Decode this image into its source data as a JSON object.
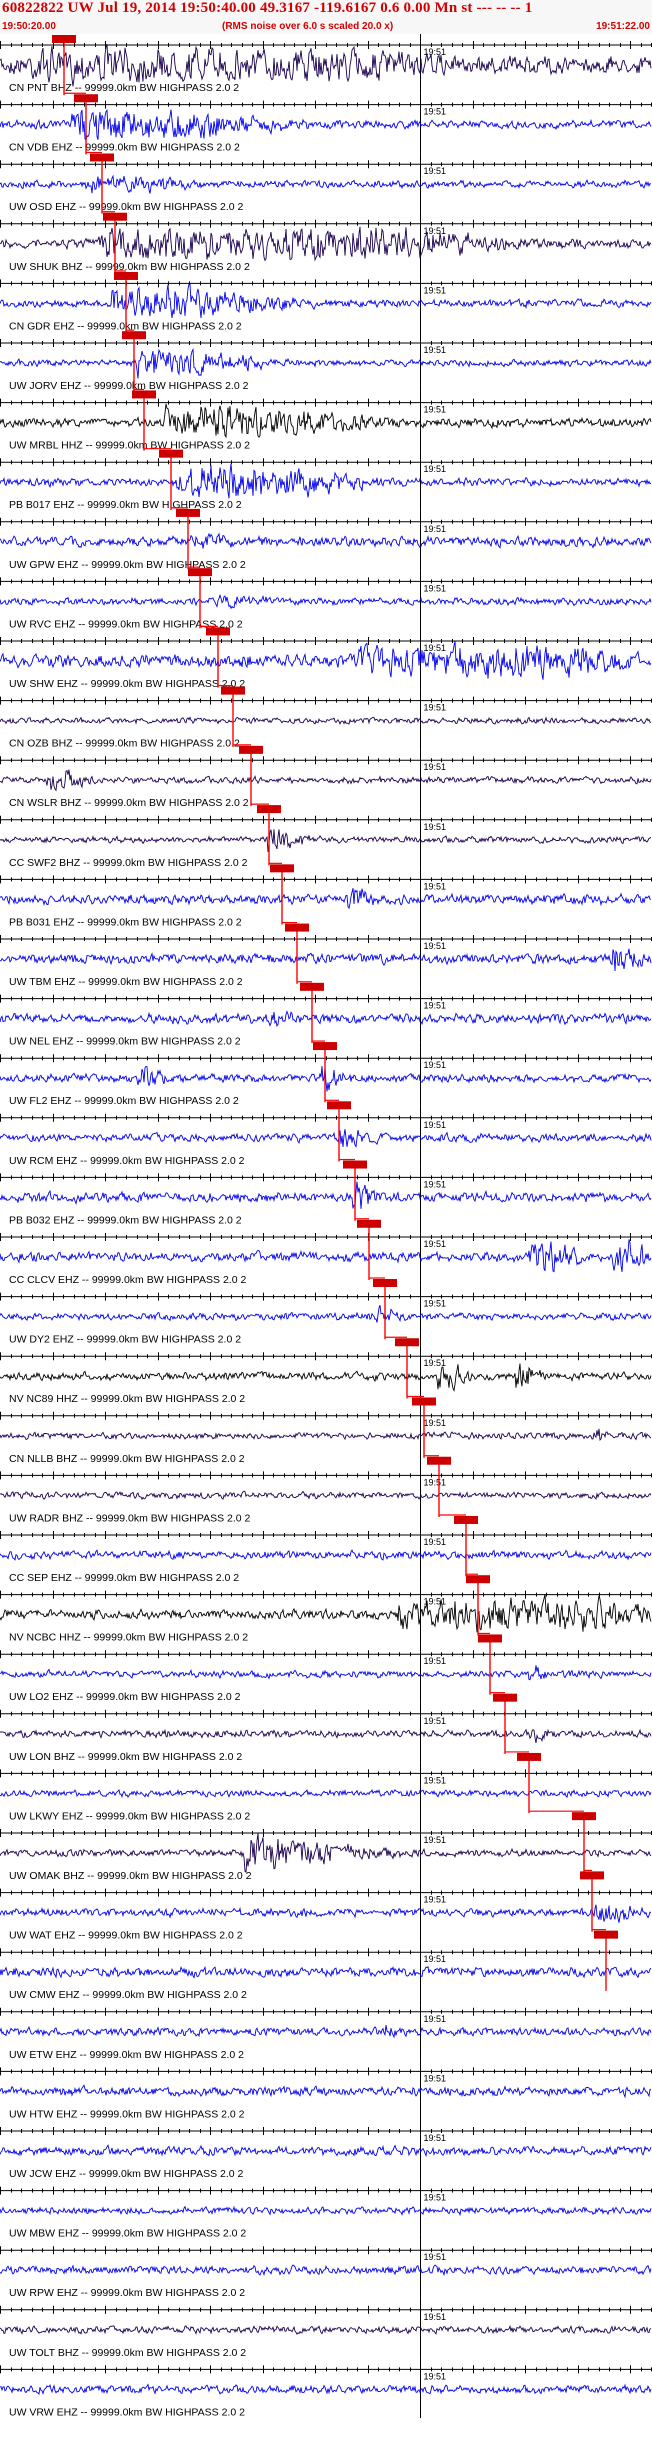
{
  "header": {
    "title": "60822822 UW Jul 19, 2014 19:50:40.00   49.3167 -119.6167  0.6 0.00 Mn st --- --  --   1",
    "start_time": "19:50:20.00",
    "note": "(RMS noise over 6.0 s scaled 20.0 x)",
    "end_time": "19:51:22.00"
  },
  "chart_data": {
    "type": "seismogram",
    "x_start": "19:50:20.00",
    "x_end": "19:51:22.00",
    "minute_tick_label": "19:51",
    "pick_line_color": "#ff0000",
    "pick_box_color": "#cc0000",
    "traces": [
      {
        "label": "CN PNT BHZ -- 99999.0km BW  HIGHPASS  2.0  2",
        "color": "#1a0050",
        "amp": 0.55,
        "events": [
          [
            0.05,
            0.48,
            3.2
          ]
        ]
      },
      {
        "label": "CN VDB EHZ -- 99999.0km BW  HIGHPASS  2.0  2",
        "color": "#0000ee",
        "amp": 0.25,
        "events": [
          [
            0.12,
            0.3,
            1.2
          ]
        ]
      },
      {
        "label": "UW OSD EHZ -- 99999.0km BW  HIGHPASS  2.0  2",
        "color": "#0000ee",
        "amp": 0.22,
        "events": [
          [
            0.14,
            0.2,
            0.6
          ]
        ]
      },
      {
        "label": "UW SHUK BHZ -- 99999.0km BW  HIGHPASS  2.0  2",
        "color": "#1a0050",
        "amp": 0.3,
        "events": [
          [
            0.16,
            0.4,
            2.0
          ],
          [
            0.5,
            0.25,
            1.4
          ]
        ]
      },
      {
        "label": "CN GDR EHZ -- 99999.0km BW  HIGHPASS  2.0  2",
        "color": "#0000ee",
        "amp": 0.25,
        "events": [
          [
            0.18,
            0.25,
            1.3
          ]
        ]
      },
      {
        "label": "UW JORV EHZ -- 99999.0km BW  HIGHPASS  2.0  2",
        "color": "#0000ee",
        "amp": 0.2,
        "events": [
          [
            0.22,
            0.2,
            0.9
          ]
        ]
      },
      {
        "label": "UW MRBL HHZ -- 99999.0km BW  HIGHPASS  2.0  2",
        "color": "#000000",
        "amp": 0.28,
        "events": [
          [
            0.26,
            0.3,
            1.3
          ]
        ]
      },
      {
        "label": "PB B017 EHZ -- 99999.0km BW  HIGHPASS  2.0  2",
        "color": "#0000ee",
        "amp": 0.25,
        "events": [
          [
            0.28,
            0.25,
            1.5
          ]
        ]
      },
      {
        "label": "UW GPW EHZ -- 99999.0km BW  HIGHPASS  2.0  2",
        "color": "#0000ee",
        "amp": 0.3,
        "events": [
          [
            0.3,
            0.15,
            0.6
          ]
        ]
      },
      {
        "label": "UW RVC EHZ -- 99999.0km BW  HIGHPASS  2.0  2",
        "color": "#0000ee",
        "amp": 0.22,
        "events": [
          [
            0.34,
            0.1,
            0.6
          ]
        ]
      },
      {
        "label": "UW SHW EHZ -- 99999.0km BW  HIGHPASS  2.0  2",
        "color": "#0000ee",
        "amp": 0.4,
        "events": [
          [
            0.56,
            0.3,
            3.5
          ]
        ]
      },
      {
        "label": "CN OZB BHZ -- 99999.0km BW  HIGHPASS  2.0  2",
        "color": "#1a0050",
        "amp": 0.18,
        "events": []
      },
      {
        "label": "CN WSLR BHZ -- 99999.0km BW  HIGHPASS  2.0  2",
        "color": "#1a0050",
        "amp": 0.2,
        "events": [
          [
            0.08,
            0.04,
            1.2
          ]
        ]
      },
      {
        "label": "CC SWF2 BHZ -- 99999.0km BW  HIGHPASS  2.0  2",
        "color": "#1a0050",
        "amp": 0.2,
        "events": [
          [
            0.42,
            0.05,
            0.9
          ]
        ]
      },
      {
        "label": "PB B031 EHZ -- 99999.0km BW  HIGHPASS  2.0  2",
        "color": "#0000ee",
        "amp": 0.3,
        "events": [
          [
            0.54,
            0.03,
            1.1
          ]
        ]
      },
      {
        "label": "UW TBM EHZ -- 99999.0km BW  HIGHPASS  2.0  2",
        "color": "#0000ee",
        "amp": 0.3,
        "events": [
          [
            0.95,
            0.05,
            1.0
          ]
        ]
      },
      {
        "label": "UW NEL EHZ -- 99999.0km BW  HIGHPASS  2.0  2",
        "color": "#0000ee",
        "amp": 0.3,
        "events": [
          [
            0.42,
            0.12,
            0.5
          ]
        ]
      },
      {
        "label": "UW FL2 EHZ -- 99999.0km BW  HIGHPASS  2.0  2",
        "color": "#0000ee",
        "amp": 0.25,
        "events": [
          [
            0.22,
            0.03,
            1.2
          ],
          [
            0.5,
            0.03,
            1.0
          ]
        ]
      },
      {
        "label": "UW RCM EHZ -- 99999.0km BW  HIGHPASS  2.0  2",
        "color": "#0000ee",
        "amp": 0.25,
        "events": [
          [
            0.53,
            0.06,
            0.8
          ]
        ]
      },
      {
        "label": "PB B032 EHZ -- 99999.0km BW  HIGHPASS  2.0  2",
        "color": "#0000ee",
        "amp": 0.3,
        "events": [
          [
            0.55,
            0.04,
            1.0
          ]
        ]
      },
      {
        "label": "CC CLCV EHZ -- 99999.0km BW  HIGHPASS  2.0  2",
        "color": "#0000ee",
        "amp": 0.3,
        "events": [
          [
            0.82,
            0.06,
            1.6
          ],
          [
            0.95,
            0.04,
            1.6
          ]
        ]
      },
      {
        "label": "UW DY2 EHZ -- 99999.0km BW  HIGHPASS  2.0  2",
        "color": "#0000ee",
        "amp": 0.22,
        "events": [
          [
            0.58,
            0.04,
            0.7
          ]
        ]
      },
      {
        "label": "NV NC89 HHZ -- 99999.0km BW  HIGHPASS  2.0  2",
        "color": "#000000",
        "amp": 0.25,
        "events": [
          [
            0.68,
            0.03,
            1.6
          ],
          [
            0.8,
            0.02,
            1.4
          ]
        ]
      },
      {
        "label": "CN NLLB BHZ -- 99999.0km BW  HIGHPASS  2.0  2",
        "color": "#1a0050",
        "amp": 0.2,
        "events": [
          [
            0.92,
            0.02,
            0.5
          ]
        ]
      },
      {
        "label": "UW RADR BHZ -- 99999.0km BW  HIGHPASS  2.0  2",
        "color": "#1a0050",
        "amp": 0.2,
        "events": []
      },
      {
        "label": "CC SEP EHZ -- 99999.0km BW  HIGHPASS  2.0  2",
        "color": "#0000ee",
        "amp": 0.25,
        "events": []
      },
      {
        "label": "NV NCBC HHZ -- 99999.0km BW  HIGHPASS  2.0  2",
        "color": "#000000",
        "amp": 0.3,
        "events": [
          [
            0.62,
            0.3,
            3.0
          ]
        ]
      },
      {
        "label": "UW LO2 EHZ -- 99999.0km BW  HIGHPASS  2.0  2",
        "color": "#0000ee",
        "amp": 0.22,
        "events": [
          [
            0.82,
            0.03,
            0.6
          ]
        ]
      },
      {
        "label": "UW LON BHZ -- 99999.0km BW  HIGHPASS  2.0  2",
        "color": "#1a0050",
        "amp": 0.22,
        "events": [
          [
            0.82,
            0.04,
            0.6
          ]
        ]
      },
      {
        "label": "UW LKWY EHZ -- 99999.0km BW  HIGHPASS  2.0  2",
        "color": "#0000ee",
        "amp": 0.2,
        "events": []
      },
      {
        "label": "UW OMAK BHZ -- 99999.0km BW  HIGHPASS  2.0  2",
        "color": "#1a0050",
        "amp": 0.22,
        "events": [
          [
            0.38,
            0.14,
            1.6
          ]
        ]
      },
      {
        "label": "UW WAT EHZ -- 99999.0km BW  HIGHPASS  2.0  2",
        "color": "#0000ee",
        "amp": 0.25,
        "events": [
          [
            0.92,
            0.06,
            1.0
          ]
        ]
      },
      {
        "label": "UW CMW EHZ -- 99999.0km BW  HIGHPASS  2.0  2",
        "color": "#0000ee",
        "amp": 0.3,
        "events": []
      },
      {
        "label": "UW ETW EHZ -- 99999.0km BW  HIGHPASS  2.0  2",
        "color": "#0000ee",
        "amp": 0.25,
        "events": [
          [
            0.6,
            0.02,
            0.5
          ]
        ]
      },
      {
        "label": "UW HTW EHZ -- 99999.0km BW  HIGHPASS  2.0  2",
        "color": "#0000ee",
        "amp": 0.28,
        "events": []
      },
      {
        "label": "UW JCW EHZ -- 99999.0km BW  HIGHPASS  2.0  2",
        "color": "#0000ee",
        "amp": 0.28,
        "events": []
      },
      {
        "label": "UW MBW EHZ -- 99999.0km BW  HIGHPASS  2.0  2",
        "color": "#0000ee",
        "amp": 0.22,
        "events": []
      },
      {
        "label": "UW RPW EHZ -- 99999.0km BW  HIGHPASS  2.0  2",
        "color": "#0000ee",
        "amp": 0.25,
        "events": []
      },
      {
        "label": "UW TOLT BHZ -- 99999.0km BW  HIGHPASS  2.0  2",
        "color": "#1a0050",
        "amp": 0.22,
        "events": []
      },
      {
        "label": "UW VRW EHZ -- 99999.0km BW  HIGHPASS  2.0  2",
        "color": "#0000ee",
        "amp": 0.25,
        "events": []
      }
    ],
    "picks": [
      0.098,
      0.132,
      0.157,
      0.177,
      0.193,
      0.206,
      0.221,
      0.262,
      0.288,
      0.307,
      0.334,
      0.358,
      0.385,
      0.412,
      0.433,
      0.455,
      0.478,
      0.498,
      0.52,
      0.545,
      0.566,
      0.59,
      0.624,
      0.65,
      0.674,
      0.714,
      0.733,
      0.752,
      0.775,
      0.812,
      0.895,
      0.908,
      0.93
    ]
  }
}
